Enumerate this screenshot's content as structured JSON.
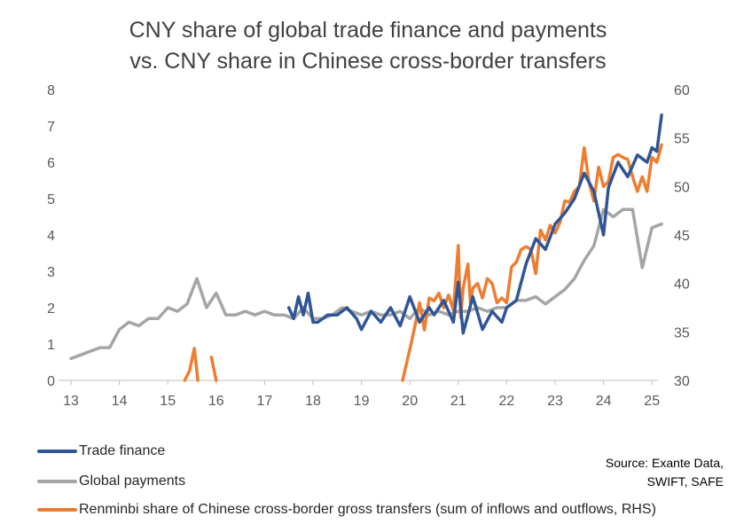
{
  "chart_data": {
    "type": "line",
    "title": "CNY share of global trade finance and payments",
    "subtitle": "vs. CNY share in Chinese cross-border transfers",
    "x_ticks": [
      "13",
      "14",
      "15",
      "16",
      "17",
      "18",
      "19",
      "20",
      "21",
      "22",
      "23",
      "24",
      "25"
    ],
    "x_tick_values": [
      2013,
      2014,
      2015,
      2016,
      2017,
      2018,
      2019,
      2020,
      2021,
      2022,
      2023,
      2024,
      2025
    ],
    "xlim": [
      2013,
      2025.5
    ],
    "ylim_left": [
      0,
      8
    ],
    "ylim_right": [
      30,
      60
    ],
    "y_ticks_left": [
      "0",
      "1",
      "2",
      "3",
      "4",
      "5",
      "6",
      "7",
      "8"
    ],
    "y_ticks_right": [
      "30",
      "35",
      "40",
      "45",
      "50",
      "55",
      "60"
    ],
    "grid": false,
    "legend_position": "bottom",
    "colors": {
      "trade": "#2f5597",
      "payments": "#a5a5a5",
      "transfers": "#ed7d31"
    },
    "series": [
      {
        "name": "Trade finance",
        "axis": "left",
        "color": "#2f5597",
        "x": [
          2017.5,
          2017.6,
          2017.7,
          2017.8,
          2017.9,
          2018.0,
          2018.1,
          2018.3,
          2018.5,
          2018.7,
          2018.9,
          2019.0,
          2019.2,
          2019.4,
          2019.6,
          2019.8,
          2020.0,
          2020.2,
          2020.4,
          2020.5,
          2020.7,
          2020.9,
          2021.0,
          2021.1,
          2021.3,
          2021.5,
          2021.7,
          2021.9,
          2022.0,
          2022.2,
          2022.4,
          2022.6,
          2022.8,
          2023.0,
          2023.2,
          2023.4,
          2023.6,
          2023.8,
          2024.0,
          2024.1,
          2024.3,
          2024.5,
          2024.7,
          2024.9,
          2025.0,
          2025.1,
          2025.2
        ],
        "values": [
          2.0,
          1.7,
          2.3,
          1.8,
          2.4,
          1.6,
          1.6,
          1.8,
          1.8,
          2.0,
          1.7,
          1.4,
          1.9,
          1.6,
          2.0,
          1.5,
          2.3,
          1.6,
          2.0,
          1.8,
          2.2,
          1.6,
          2.7,
          1.3,
          2.3,
          1.4,
          1.9,
          1.6,
          2.0,
          2.2,
          3.2,
          3.9,
          3.6,
          4.3,
          4.6,
          5.0,
          5.7,
          5.2,
          4.0,
          5.3,
          6.0,
          5.6,
          6.2,
          6.0,
          6.4,
          6.3,
          7.3
        ]
      },
      {
        "name": "Global payments",
        "axis": "left",
        "color": "#a5a5a5",
        "x": [
          2013.0,
          2013.2,
          2013.4,
          2013.6,
          2013.8,
          2014.0,
          2014.2,
          2014.4,
          2014.6,
          2014.8,
          2015.0,
          2015.2,
          2015.4,
          2015.6,
          2015.8,
          2016.0,
          2016.2,
          2016.4,
          2016.6,
          2016.8,
          2017.0,
          2017.2,
          2017.4,
          2017.6,
          2017.8,
          2018.0,
          2018.2,
          2018.4,
          2018.6,
          2018.8,
          2019.0,
          2019.2,
          2019.4,
          2019.6,
          2019.8,
          2020.0,
          2020.2,
          2020.4,
          2020.6,
          2020.8,
          2021.0,
          2021.2,
          2021.4,
          2021.6,
          2021.8,
          2022.0,
          2022.2,
          2022.4,
          2022.6,
          2022.8,
          2023.0,
          2023.2,
          2023.4,
          2023.6,
          2023.8,
          2024.0,
          2024.2,
          2024.4,
          2024.6,
          2024.8,
          2025.0,
          2025.2
        ],
        "values": [
          0.6,
          0.7,
          0.8,
          0.9,
          0.9,
          1.4,
          1.6,
          1.5,
          1.7,
          1.7,
          2.0,
          1.9,
          2.1,
          2.8,
          2.0,
          2.4,
          1.8,
          1.8,
          1.9,
          1.8,
          1.9,
          1.8,
          1.8,
          1.7,
          2.0,
          1.7,
          1.7,
          1.8,
          2.0,
          1.9,
          1.8,
          1.9,
          1.8,
          1.8,
          1.9,
          1.7,
          2.0,
          1.8,
          1.9,
          1.8,
          1.9,
          1.9,
          2.0,
          1.9,
          2.0,
          2.0,
          2.2,
          2.2,
          2.3,
          2.1,
          2.3,
          2.5,
          2.8,
          3.3,
          3.7,
          4.7,
          4.5,
          4.7,
          4.7,
          3.1,
          4.2,
          4.3
        ]
      },
      {
        "name": "Renminbi share of Chinese cross-border gross transfers (sum of inflows and outflows, RHS)",
        "axis": "right",
        "color": "#ed7d31",
        "segments": [
          {
            "x": [
              2015.35,
              2015.45,
              2015.55,
              2015.62
            ],
            "values": [
              30.0,
              31.0,
              33.3,
              30.0
            ]
          },
          {
            "x": [
              2015.9,
              2016.0
            ],
            "values": [
              32.4,
              30.0
            ]
          },
          {
            "x": [
              2019.85,
              2020.0,
              2020.1,
              2020.2,
              2020.3,
              2020.4,
              2020.5,
              2020.6,
              2020.7,
              2020.8,
              2020.9,
              2021.0,
              2021.05,
              2021.1,
              2021.2,
              2021.25,
              2021.3,
              2021.4,
              2021.5,
              2021.6,
              2021.7,
              2021.8,
              2021.9,
              2022.0,
              2022.1,
              2022.2,
              2022.3,
              2022.4,
              2022.5,
              2022.6,
              2022.7,
              2022.8,
              2022.9,
              2023.0,
              2023.1,
              2023.2,
              2023.3,
              2023.4,
              2023.5,
              2023.6,
              2023.7,
              2023.8,
              2023.9,
              2024.0,
              2024.1,
              2024.2,
              2024.3,
              2024.4,
              2024.5,
              2024.6,
              2024.7,
              2024.8,
              2024.9,
              2025.0,
              2025.1,
              2025.2
            ],
            "values": [
              30.0,
              33.2,
              35.5,
              38.0,
              35.2,
              38.5,
              38.2,
              39.0,
              37.5,
              38.8,
              37.2,
              43.9,
              36.5,
              39.5,
              42.0,
              38.0,
              39.5,
              40.0,
              38.5,
              40.5,
              40.0,
              38.0,
              38.5,
              38.0,
              41.7,
              42.2,
              43.5,
              43.8,
              43.5,
              41.0,
              45.5,
              44.5,
              46.0,
              45.2,
              46.3,
              48.5,
              48.4,
              49.5,
              50.0,
              54.0,
              50.5,
              48.5,
              52.0,
              50.0,
              50.5,
              53.0,
              53.3,
              53.0,
              52.8,
              51.0,
              49.5,
              51.0,
              49.5,
              53.0,
              52.5,
              54.3
            ]
          }
        ]
      }
    ],
    "legend": [
      {
        "label": "Trade finance",
        "color": "#2f5597"
      },
      {
        "label": "Global payments",
        "color": "#a5a5a5"
      },
      {
        "label": "Renminbi share of Chinese cross-border gross transfers (sum of inflows and outflows, RHS)",
        "color": "#ed7d31"
      }
    ],
    "source": [
      "Source: Exante Data,",
      "SWIFT, SAFE"
    ]
  }
}
